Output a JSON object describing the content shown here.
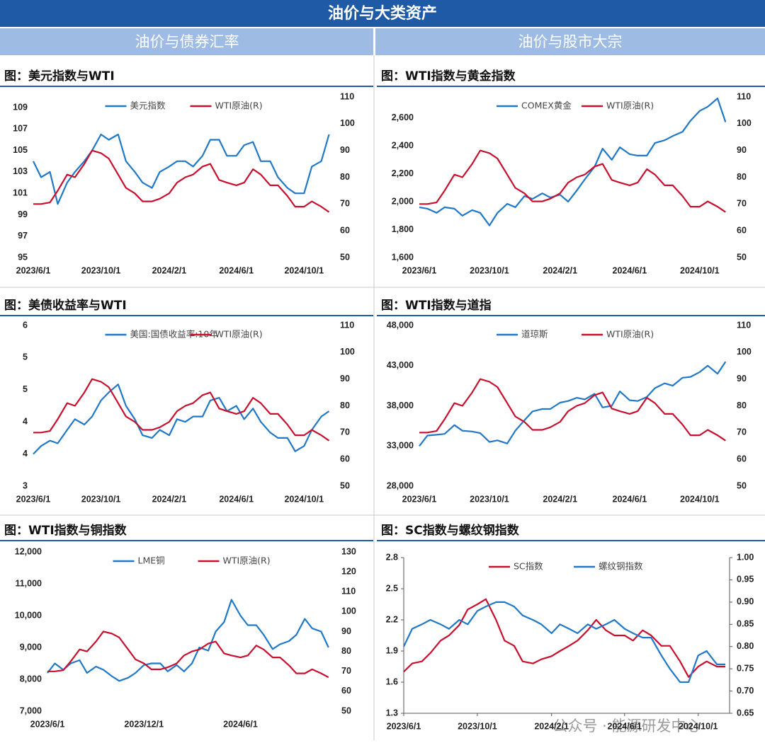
{
  "header": {
    "title": "油价与大类资产",
    "sections": [
      "油价与债券汇率",
      "油价与股市大宗"
    ]
  },
  "watermark": "公众号 · 能源研发中心",
  "chart_data": [
    {
      "type": "line",
      "title": "图：美元指数与WTI",
      "x": [
        "2023/6/1",
        "2023/6/15",
        "2023/7/1",
        "2023/7/15",
        "2023/8/1",
        "2023/8/15",
        "2023/9/1",
        "2023/9/15",
        "2023/10/1",
        "2023/10/15",
        "2023/11/1",
        "2023/11/15",
        "2023/12/1",
        "2023/12/15",
        "2024/1/1",
        "2024/1/15",
        "2024/2/1",
        "2024/2/15",
        "2024/3/1",
        "2024/3/15",
        "2024/4/1",
        "2024/4/15",
        "2024/5/1",
        "2024/5/15",
        "2024/6/1",
        "2024/6/15",
        "2024/7/1",
        "2024/7/15",
        "2024/8/1",
        "2024/8/15",
        "2024/9/1",
        "2024/9/15",
        "2024/10/1",
        "2024/10/15",
        "2024/11/1",
        "2024/11/15"
      ],
      "xlim": [
        "2023/6/1",
        "2024/11/22"
      ],
      "xticks": [
        "2023/6/1",
        "2023/10/1",
        "2024/2/1",
        "2024/6/1",
        "2024/10/1"
      ],
      "ylim": [
        95,
        110
      ],
      "yticks": [
        95,
        97,
        99,
        101,
        103,
        105,
        107,
        109
      ],
      "y2lim": [
        50,
        110
      ],
      "y2ticks": [
        50,
        60,
        70,
        80,
        90,
        100,
        110
      ],
      "series": [
        {
          "name": "美元指数",
          "color": "#1f78c8",
          "values": [
            104,
            102.5,
            103,
            100,
            102,
            103,
            104,
            105,
            106.5,
            106,
            106.5,
            104,
            103,
            102,
            101.5,
            103,
            103.5,
            104,
            104,
            103.5,
            104.5,
            106,
            106,
            104.5,
            104.5,
            105.5,
            105.8,
            104,
            104,
            102.5,
            101.5,
            101,
            101,
            103.5,
            104,
            106.5
          ]
        },
        {
          "name": "WTI原油(R)",
          "color": "#c8102e",
          "axis": "y2",
          "values": [
            70,
            70,
            70.6,
            75,
            81,
            80,
            85,
            90,
            89,
            87,
            81,
            76,
            74,
            71,
            71,
            72,
            74,
            78,
            80,
            81,
            84,
            85,
            79,
            78,
            77,
            78,
            83,
            81,
            77,
            77,
            73,
            69,
            69,
            71,
            69,
            67
          ]
        }
      ]
    },
    {
      "type": "line",
      "title": "图：WTI指数与黄金指数",
      "x": [
        "2023/6/1",
        "2023/6/15",
        "2023/7/1",
        "2023/7/15",
        "2023/8/1",
        "2023/8/15",
        "2023/9/1",
        "2023/9/15",
        "2023/10/1",
        "2023/10/15",
        "2023/11/1",
        "2023/11/15",
        "2023/12/1",
        "2023/12/15",
        "2024/1/1",
        "2024/1/15",
        "2024/2/1",
        "2024/2/15",
        "2024/3/1",
        "2024/3/15",
        "2024/4/1",
        "2024/4/15",
        "2024/5/1",
        "2024/5/15",
        "2024/6/1",
        "2024/6/15",
        "2024/7/1",
        "2024/7/15",
        "2024/8/1",
        "2024/8/15",
        "2024/9/1",
        "2024/9/15",
        "2024/10/1",
        "2024/10/15",
        "2024/11/1",
        "2024/11/15"
      ],
      "xlim": [
        "2023/6/1",
        "2024/11/22"
      ],
      "xticks": [
        "2023/6/1",
        "2023/10/1",
        "2024/2/1",
        "2024/6/1",
        "2024/10/1"
      ],
      "ylim": [
        1600,
        2750
      ],
      "yticks": [
        {
          "value": 1600,
          "label": "1,600"
        },
        {
          "value": 1800,
          "label": "1,800"
        },
        {
          "value": 2000,
          "label": "2,000"
        },
        {
          "value": 2200,
          "label": "2,200"
        },
        {
          "value": 2400,
          "label": "2,400"
        },
        {
          "value": 2600,
          "label": "2,600"
        }
      ],
      "y2lim": [
        50,
        110
      ],
      "y2ticks": [
        50,
        60,
        70,
        80,
        90,
        100,
        110
      ],
      "series": [
        {
          "name": "COMEX黄金",
          "color": "#1f78c8",
          "values": [
            1960,
            1950,
            1920,
            1960,
            1950,
            1900,
            1940,
            1920,
            1830,
            1920,
            1985,
            1960,
            2040,
            2020,
            2060,
            2030,
            2050,
            2000,
            2080,
            2160,
            2250,
            2380,
            2300,
            2390,
            2340,
            2330,
            2330,
            2420,
            2440,
            2470,
            2500,
            2580,
            2650,
            2680,
            2740,
            2570
          ]
        },
        {
          "name": "WTI原油(R)",
          "color": "#c8102e",
          "axis": "y2",
          "values": [
            70,
            70,
            70.6,
            75,
            81,
            80,
            85,
            90,
            89,
            87,
            81,
            76,
            74,
            71,
            71,
            72,
            74,
            78,
            80,
            81,
            84,
            85,
            79,
            78,
            77,
            78,
            83,
            81,
            77,
            77,
            73,
            69,
            69,
            71,
            69,
            67
          ]
        }
      ]
    },
    {
      "type": "line",
      "title": "图：美债收益率与WTI",
      "x": [
        "2023/6/1",
        "2023/6/15",
        "2023/7/1",
        "2023/7/15",
        "2023/8/1",
        "2023/8/15",
        "2023/9/1",
        "2023/9/15",
        "2023/10/1",
        "2023/10/15",
        "2023/11/1",
        "2023/11/15",
        "2023/12/1",
        "2023/12/15",
        "2024/1/1",
        "2024/1/15",
        "2024/2/1",
        "2024/2/15",
        "2024/3/1",
        "2024/3/15",
        "2024/4/1",
        "2024/4/15",
        "2024/5/1",
        "2024/5/15",
        "2024/6/1",
        "2024/6/15",
        "2024/7/1",
        "2024/7/15",
        "2024/8/1",
        "2024/8/15",
        "2024/9/1",
        "2024/9/15",
        "2024/10/1",
        "2024/10/15",
        "2024/11/1",
        "2024/11/15"
      ],
      "xlim": [
        "2023/6/1",
        "2024/11/22"
      ],
      "xticks": [
        "2023/6/1",
        "2023/10/1",
        "2024/2/1",
        "2024/6/1",
        "2024/10/1"
      ],
      "ylim": [
        3,
        6
      ],
      "yticks": [
        3,
        {
          "value": 3.6,
          "label": "4"
        },
        {
          "value": 4.2,
          "label": "4"
        },
        {
          "value": 4.8,
          "label": "5"
        },
        {
          "value": 5.4,
          "label": "5"
        },
        6
      ],
      "y2lim": [
        50,
        110
      ],
      "y2ticks": [
        50,
        60,
        70,
        80,
        90,
        100,
        110
      ],
      "series": [
        {
          "name": "美国:国债收益率:10年",
          "color": "#1f78c8",
          "values": [
            3.6,
            3.75,
            3.85,
            3.8,
            4.05,
            4.25,
            4.15,
            4.3,
            4.6,
            4.75,
            4.9,
            4.5,
            4.25,
            3.95,
            3.9,
            4.05,
            3.95,
            4.25,
            4.2,
            4.3,
            4.3,
            4.6,
            4.65,
            4.4,
            4.5,
            4.25,
            4.45,
            4.2,
            4.0,
            3.9,
            3.9,
            3.65,
            3.75,
            4.05,
            4.3,
            4.4
          ]
        },
        {
          "name": "WTI原油(R)",
          "color": "#c8102e",
          "axis": "y2",
          "values": [
            70,
            70,
            70.6,
            75,
            81,
            80,
            85,
            90,
            89,
            87,
            81,
            76,
            74,
            71,
            71,
            72,
            74,
            78,
            80,
            81,
            84,
            85,
            79,
            78,
            77,
            78,
            83,
            81,
            77,
            77,
            73,
            69,
            69,
            71,
            69,
            67
          ]
        }
      ]
    },
    {
      "type": "line",
      "title": "图：WTI指数与道指",
      "x": [
        "2023/6/1",
        "2023/6/15",
        "2023/7/1",
        "2023/7/15",
        "2023/8/1",
        "2023/8/15",
        "2023/9/1",
        "2023/9/15",
        "2023/10/1",
        "2023/10/15",
        "2023/11/1",
        "2023/11/15",
        "2023/12/1",
        "2023/12/15",
        "2024/1/1",
        "2024/1/15",
        "2024/2/1",
        "2024/2/15",
        "2024/3/1",
        "2024/3/15",
        "2024/4/1",
        "2024/4/15",
        "2024/5/1",
        "2024/5/15",
        "2024/6/1",
        "2024/6/15",
        "2024/7/1",
        "2024/7/15",
        "2024/8/1",
        "2024/8/15",
        "2024/9/1",
        "2024/9/15",
        "2024/10/1",
        "2024/10/15",
        "2024/11/1",
        "2024/11/15"
      ],
      "xlim": [
        "2023/6/1",
        "2024/11/22"
      ],
      "xticks": [
        "2023/6/1",
        "2023/10/1",
        "2024/2/1",
        "2024/6/1",
        "2024/10/1"
      ],
      "ylim": [
        28000,
        48000
      ],
      "yticks": [
        {
          "value": 28000,
          "label": "28,000"
        },
        {
          "value": 33000,
          "label": "33,000"
        },
        {
          "value": 38000,
          "label": "38,000"
        },
        {
          "value": 43000,
          "label": "43,000"
        },
        {
          "value": 48000,
          "label": "48,000"
        }
      ],
      "y2lim": [
        50,
        110
      ],
      "y2ticks": [
        50,
        60,
        70,
        80,
        90,
        100,
        110
      ],
      "series": [
        {
          "name": "道琼斯",
          "color": "#1f78c8",
          "values": [
            33000,
            34300,
            34400,
            34500,
            35600,
            34900,
            34800,
            34600,
            33500,
            33700,
            33300,
            34900,
            36200,
            37300,
            37600,
            37600,
            38400,
            38600,
            39000,
            38800,
            39500,
            37800,
            38000,
            39800,
            38700,
            38600,
            39100,
            40200,
            40800,
            40500,
            41500,
            41600,
            42200,
            43000,
            42000,
            43500
          ]
        },
        {
          "name": "WTI原油(R)",
          "color": "#c8102e",
          "axis": "y2",
          "values": [
            70,
            70,
            70.6,
            75,
            81,
            80,
            85,
            90,
            89,
            87,
            81,
            76,
            74,
            71,
            71,
            72,
            74,
            78,
            80,
            81,
            84,
            85,
            79,
            78,
            77,
            78,
            83,
            81,
            77,
            77,
            73,
            69,
            69,
            71,
            69,
            67
          ]
        }
      ]
    },
    {
      "type": "line",
      "title": "图：WTI指数与铜指数",
      "x": [
        "2023/6/1",
        "2023/6/15",
        "2023/7/1",
        "2023/7/15",
        "2023/8/1",
        "2023/8/15",
        "2023/9/1",
        "2023/9/15",
        "2023/10/1",
        "2023/10/15",
        "2023/11/1",
        "2023/11/15",
        "2023/12/1",
        "2023/12/15",
        "2024/1/1",
        "2024/1/15",
        "2024/2/1",
        "2024/2/15",
        "2024/3/1",
        "2024/3/15",
        "2024/4/1",
        "2024/4/15",
        "2024/5/1",
        "2024/5/15",
        "2024/6/1",
        "2024/6/15",
        "2024/7/1",
        "2024/7/15",
        "2024/8/1",
        "2024/8/15",
        "2024/9/1",
        "2024/9/15",
        "2024/10/1",
        "2024/10/15",
        "2024/11/1",
        "2024/11/15"
      ],
      "xlim": [
        "2023/6/1",
        "2024/11/26"
      ],
      "xticks": [
        "2023/6/1",
        "2023/12/1",
        "2024/6/1"
      ],
      "ylim": [
        7000,
        12000
      ],
      "yticks": [
        {
          "value": 7000,
          "label": "7,000"
        },
        {
          "value": 8000,
          "label": "8,000"
        },
        {
          "value": 9000,
          "label": "9,000"
        },
        {
          "value": 10000,
          "label": "10,000"
        },
        {
          "value": 11000,
          "label": "11,000"
        },
        {
          "value": 12000,
          "label": "12,000"
        }
      ],
      "y2lim": [
        50,
        130
      ],
      "y2ticks": [
        50,
        60,
        70,
        80,
        90,
        100,
        110,
        120,
        130
      ],
      "series": [
        {
          "name": "LME铜",
          "color": "#1f78c8",
          "values": [
            8200,
            8500,
            8300,
            8500,
            8600,
            8200,
            8400,
            8300,
            8100,
            7950,
            8050,
            8200,
            8450,
            8500,
            8500,
            8250,
            8450,
            8250,
            8500,
            9000,
            8900,
            9500,
            9800,
            10500,
            10000,
            9700,
            9700,
            9400,
            8950,
            9100,
            9200,
            9400,
            9900,
            9600,
            9500,
            9000
          ]
        },
        {
          "name": "WTI原油(R)",
          "color": "#c8102e",
          "axis": "y2",
          "values": [
            70,
            70,
            70.6,
            75,
            81,
            80,
            85,
            90,
            89,
            87,
            81,
            76,
            74,
            71,
            71,
            72,
            74,
            78,
            80,
            81,
            84,
            85,
            79,
            78,
            77,
            78,
            83,
            81,
            77,
            77,
            73,
            69,
            69,
            71,
            69,
            67
          ]
        }
      ]
    },
    {
      "type": "line",
      "title": "图：SC指数与螺纹钢指数",
      "axis_lines": true,
      "x": [
        "2023/6/1",
        "2023/6/15",
        "2023/7/1",
        "2023/7/15",
        "2023/8/1",
        "2023/8/15",
        "2023/9/1",
        "2023/9/15",
        "2023/10/1",
        "2023/10/15",
        "2023/11/1",
        "2023/11/15",
        "2023/12/1",
        "2023/12/15",
        "2024/1/1",
        "2024/1/15",
        "2024/2/1",
        "2024/2/15",
        "2024/3/1",
        "2024/3/15",
        "2024/4/1",
        "2024/4/15",
        "2024/5/1",
        "2024/5/15",
        "2024/6/1",
        "2024/6/15",
        "2024/7/1",
        "2024/7/15",
        "2024/8/1",
        "2024/8/15",
        "2024/9/1",
        "2024/9/15",
        "2024/10/1",
        "2024/10/15",
        "2024/11/1",
        "2024/11/15"
      ],
      "xlim": [
        "2023/6/1",
        "2024/11/22"
      ],
      "xticks": [
        "2023/6/1",
        "2023/10/1",
        "2024/2/1",
        "2024/6/1",
        "2024/10/1"
      ],
      "ylim": [
        1.3,
        2.8
      ],
      "yticks": [
        1.3,
        1.6,
        1.9,
        2.2,
        2.5,
        2.8
      ],
      "y2lim": [
        0.65,
        1
      ],
      "y2ticks": [
        0.65,
        {
          "value": 0.7,
          "label": "0.70"
        },
        0.75,
        {
          "value": 0.8,
          "label": "0.80"
        },
        0.85,
        {
          "value": 0.9,
          "label": "0.90"
        },
        0.95,
        {
          "value": 1,
          "label": "1.00"
        }
      ],
      "series": [
        {
          "name": "SC指数",
          "color": "#c8102e",
          "values": [
            1.7,
            1.78,
            1.8,
            1.88,
            2.0,
            2.05,
            2.15,
            2.3,
            2.35,
            2.4,
            2.2,
            2.0,
            1.95,
            1.8,
            1.78,
            1.82,
            1.85,
            1.9,
            1.95,
            2.0,
            2.1,
            2.2,
            2.1,
            2.05,
            2.05,
            2.0,
            2.1,
            2.05,
            1.95,
            1.95,
            1.8,
            1.65,
            1.75,
            1.8,
            1.75,
            1.75
          ]
        },
        {
          "name": "螺纹钢指数",
          "color": "#1f78c8",
          "axis": "y2",
          "values": [
            0.8,
            0.84,
            0.85,
            0.86,
            0.85,
            0.84,
            0.86,
            0.85,
            0.88,
            0.89,
            0.9,
            0.9,
            0.89,
            0.87,
            0.86,
            0.85,
            0.83,
            0.85,
            0.84,
            0.83,
            0.85,
            0.84,
            0.85,
            0.86,
            0.84,
            0.83,
            0.82,
            0.82,
            0.78,
            0.75,
            0.72,
            0.72,
            0.78,
            0.79,
            0.76,
            0.76
          ]
        }
      ]
    }
  ]
}
